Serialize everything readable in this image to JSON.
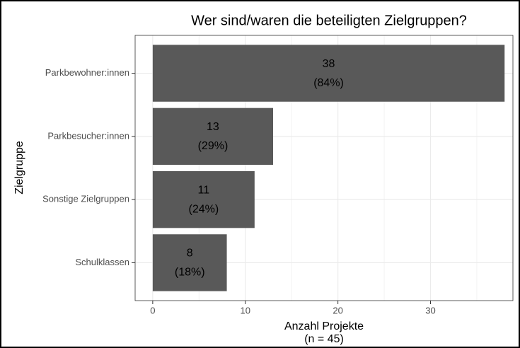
{
  "chart_data": {
    "type": "bar",
    "orientation": "horizontal",
    "title": "Wer sind/waren die beteiligten Zielgruppen?",
    "xlabel": [
      "Anzahl Projekte",
      "(n = 45)"
    ],
    "ylabel": "Zielgruppe",
    "categories": [
      "Parkbewohner:innen",
      "Parkbesucher:innen",
      "Sonstige Zielgruppen",
      "Schulklassen"
    ],
    "values": [
      38,
      13,
      11,
      8
    ],
    "shares": [
      84,
      29,
      24,
      18
    ],
    "share_labels": [
      "(84%)",
      "(29%)",
      "(24%)",
      "(18%)"
    ],
    "color": "#595959",
    "xlim": [
      -1.9,
      38.9
    ],
    "xticks": [
      0,
      10,
      20,
      30
    ],
    "xminorticks": [
      5,
      15,
      25,
      35
    ],
    "grid": true
  }
}
